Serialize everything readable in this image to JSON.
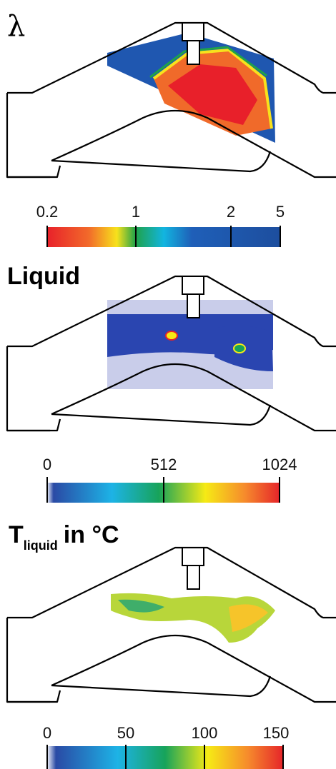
{
  "panels": [
    {
      "title": "λ",
      "colorbar": {
        "ticks": [
          "0.2",
          "1",
          "2",
          "5"
        ]
      }
    },
    {
      "title": "Liquid",
      "colorbar": {
        "ticks": [
          "0",
          "512",
          "1024"
        ]
      }
    },
    {
      "title": {
        "main": "T",
        "subscript": "liquid",
        "suffix": "in °C"
      },
      "colorbar": {
        "ticks": [
          "0",
          "50",
          "100",
          "150"
        ]
      }
    }
  ]
}
